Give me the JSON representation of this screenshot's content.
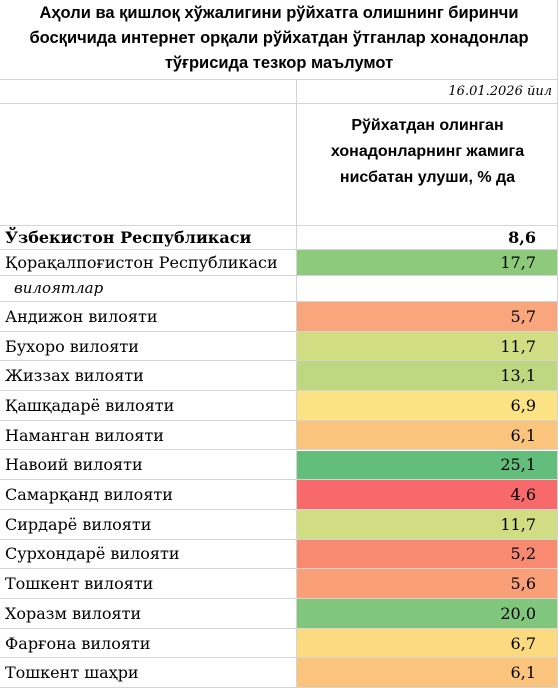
{
  "header": {
    "title_lines": [
      "Аҳоли ва қишлоқ хўжалигини рўйхатга олишнинг биринчи",
      "босқичида интернет орқали рўйхатдан  ўтганлар хонадонлар",
      "тўғрисида тезкор маълумот"
    ],
    "date": "16.01.2026 йил",
    "column_header_lines": [
      "Рўйхатдан олинган",
      "хонадонларнинг жамига",
      "нисбатан улуши, % да"
    ]
  },
  "table": {
    "total": {
      "name": "Ўзбекистон Республикаси",
      "value": "8,6",
      "color": "#ffffff"
    },
    "karakalpakstan": {
      "name": "Қорақалпоғистон Республикаси",
      "value": "17,7",
      "color": "#8dca7b"
    },
    "subheader": "вилоятлар",
    "rows": [
      {
        "name": "Андижон вилояти",
        "value": "5,7",
        "color": "#f9a67c"
      },
      {
        "name": "Бухоро вилояти",
        "value": "11,7",
        "color": "#d0dd82"
      },
      {
        "name": "Жиззах вилояти",
        "value": "13,1",
        "color": "#bdd881"
      },
      {
        "name": "Қашқадарё вилояти",
        "value": "6,9",
        "color": "#fbe383"
      },
      {
        "name": "Наманган вилояти",
        "value": "6,1",
        "color": "#fbc47d"
      },
      {
        "name": "Навоий вилояти",
        "value": "25,1",
        "color": "#64be7b"
      },
      {
        "name": "Самарқанд вилояти",
        "value": "4,6",
        "color": "#f8696b"
      },
      {
        "name": "Сирдарё вилояти",
        "value": "11,7",
        "color": "#d0dd82"
      },
      {
        "name": "Сурхондарё вилояти",
        "value": "5,2",
        "color": "#f88a71"
      },
      {
        "name": "Тошкент вилояти",
        "value": "5,6",
        "color": "#f9a078"
      },
      {
        "name": "Хоразм вилояти",
        "value": "20,0",
        "color": "#80c67c"
      },
      {
        "name": "Фарғона вилояти",
        "value": "6,7",
        "color": "#fcda80"
      },
      {
        "name": "Тошкент шаҳри",
        "value": "6,1",
        "color": "#fbc47d"
      }
    ]
  }
}
